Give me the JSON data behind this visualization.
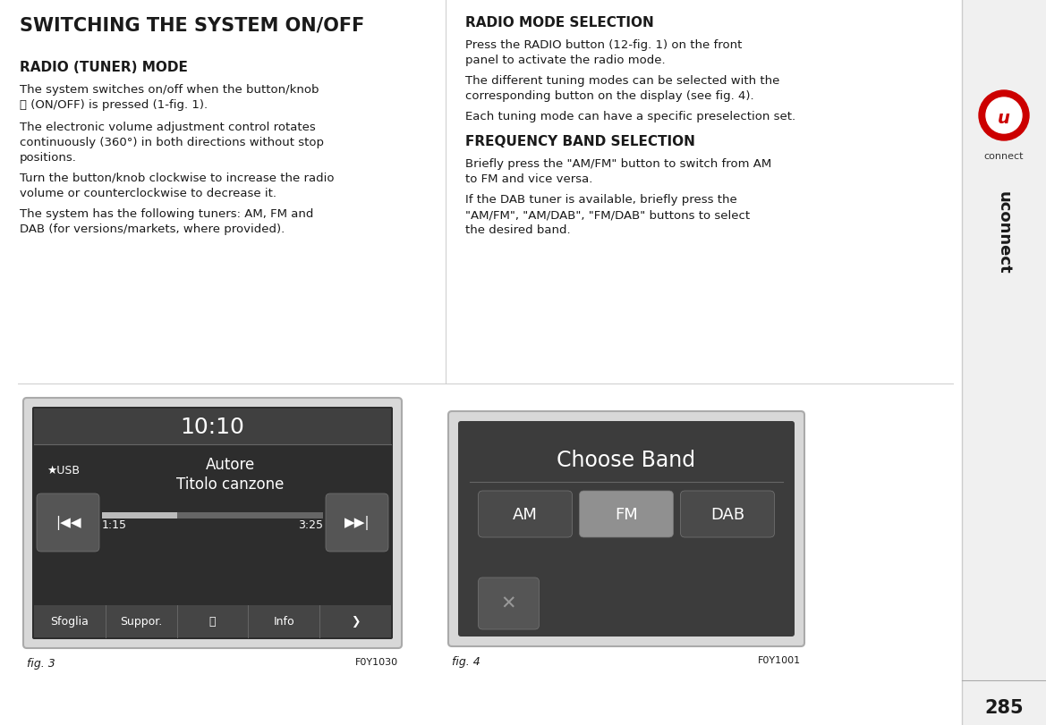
{
  "bg_color": "#ffffff",
  "sidebar_color": "#f0f0f0",
  "page_num": "285",
  "title_left": "SWITCHING THE SYSTEM ON/OFF",
  "heading1": "RADIO (TUNER) MODE",
  "para1_l1": "The system switches on/off when the button/knob",
  "para1_l2": "ⓘ (ON/OFF) is pressed (1-fig. 1).",
  "para2": "The electronic volume adjustment control rotates\ncontinuously (360°) in both directions without stop\npositions.",
  "para3": "Turn the button/knob clockwise to increase the radio\nvolume or counterclockwise to decrease it.",
  "para4": "The system has the following tuners: AM, FM and\nDAB (for versions/markets, where provided).",
  "title_right": "RADIO MODE SELECTION",
  "para_r1": "Press the RADIO button (12-fig. 1) on the front\npanel to activate the radio mode.",
  "para_r2": "The different tuning modes can be selected with the\ncorresponding button on the display (see fig. 4).",
  "para_r3": "Each tuning mode can have a specific preselection set.",
  "heading2": "FREQUENCY BAND SELECTION",
  "para_r4": "Briefly press the \"AM/FM\" button to switch from AM\nto FM and vice versa.",
  "para_r5": "If the DAB tuner is available, briefly press the\n\"AM/FM\", \"AM/DAB\", \"FM/DAB\" buttons to select\nthe desired band.",
  "fig3_label": "fig. 3",
  "fig3_code": "F0Y1030",
  "fig4_label": "fig. 4",
  "fig4_code": "F0Y1001",
  "screen_dark": "#2d2d2d",
  "screen_mid": "#3a3a3a",
  "screen_top": "#404040",
  "btn_dark": "#4a4a4a",
  "btn_gray": "#888888",
  "btn_bar": "#454545"
}
